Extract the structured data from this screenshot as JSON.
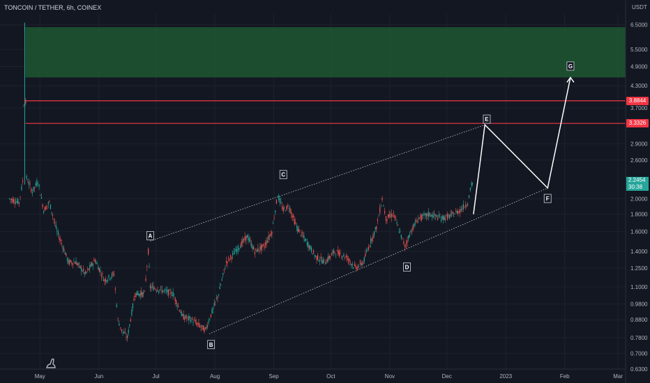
{
  "header": {
    "title": "TONCOIN / TETHER, 6h, COINEX"
  },
  "axis": {
    "currency": "USDT",
    "y_ticks": [
      "6.5000",
      "5.5000",
      "4.9000",
      "4.3000",
      "3.7000",
      "2.9000",
      "2.6000",
      "2.0000",
      "1.8000",
      "1.6000",
      "1.4000",
      "1.2500",
      "1.1000",
      "0.9800",
      "0.8800",
      "0.7800",
      "0.7000",
      "0.6300"
    ],
    "x_ticks": [
      "May",
      "Jun",
      "Jul",
      "Aug",
      "Sep",
      "Oct",
      "Nov",
      "Dec",
      "2023",
      "Feb",
      "Mar"
    ]
  },
  "levels": [
    {
      "price": 3.8844,
      "label": "3.8844",
      "color": "#f23645"
    },
    {
      "price": 3.3326,
      "label": "3.3326",
      "color": "#f23645"
    }
  ],
  "last_price": {
    "value": "2.2454",
    "countdown": "30:38",
    "color": "#26a69a"
  },
  "chart_data": {
    "type": "line",
    "title": "TONCOIN / TETHER, 6h, COINEX",
    "x_range": [
      "2022-04-10",
      "2023-03-05"
    ],
    "ylim": [
      0.63,
      7.0
    ],
    "y_scale": "log",
    "zone": {
      "from": 4.55,
      "to": 6.4,
      "color": "#1e5b32"
    },
    "price_path": {
      "x": [
        "2022-04-15",
        "2022-04-20",
        "2022-04-22",
        "2022-04-23",
        "2022-04-24",
        "2022-04-27",
        "2022-04-30",
        "2022-05-03",
        "2022-05-06",
        "2022-05-10",
        "2022-05-13",
        "2022-05-16",
        "2022-05-20",
        "2022-05-25",
        "2022-05-30",
        "2022-06-04",
        "2022-06-09",
        "2022-06-11",
        "2022-06-13",
        "2022-06-16",
        "2022-06-20",
        "2022-06-25",
        "2022-06-27",
        "2022-06-28",
        "2022-07-03",
        "2022-07-10",
        "2022-07-15",
        "2022-07-20",
        "2022-07-27",
        "2022-08-03",
        "2022-08-07",
        "2022-08-12",
        "2022-08-18",
        "2022-08-22",
        "2022-08-27",
        "2022-08-31",
        "2022-09-03",
        "2022-09-06",
        "2022-09-09",
        "2022-09-13",
        "2022-09-18",
        "2022-09-23",
        "2022-09-28",
        "2022-10-03",
        "2022-10-09",
        "2022-10-14",
        "2022-10-18",
        "2022-10-22",
        "2022-10-25",
        "2022-10-28",
        "2022-10-30",
        "2022-11-03",
        "2022-11-07",
        "2022-11-09",
        "2022-11-12",
        "2022-11-16",
        "2022-11-22",
        "2022-11-28",
        "2022-12-03",
        "2022-12-08",
        "2022-12-12",
        "2022-12-14",
        "2022-12-15"
      ],
      "y": [
        2.0,
        1.95,
        2.25,
        6.4,
        2.3,
        2.1,
        2.25,
        1.85,
        1.95,
        1.6,
        1.45,
        1.3,
        1.3,
        1.2,
        1.32,
        1.15,
        1.2,
        0.88,
        0.82,
        0.78,
        1.05,
        1.05,
        1.4,
        1.1,
        1.08,
        1.05,
        0.9,
        0.88,
        0.82,
        1.05,
        1.3,
        1.4,
        1.55,
        1.4,
        1.45,
        1.6,
        2.05,
        1.85,
        1.9,
        1.65,
        1.5,
        1.35,
        1.3,
        1.4,
        1.35,
        1.25,
        1.3,
        1.5,
        1.65,
        2.0,
        1.75,
        1.8,
        1.55,
        1.45,
        1.6,
        1.75,
        1.8,
        1.75,
        1.78,
        1.85,
        1.95,
        2.2,
        2.2454
      ]
    },
    "projection": {
      "x": [
        "2022-12-15",
        "2022-12-21",
        "2023-01-23",
        "2023-02-04"
      ],
      "y": [
        1.8,
        3.3,
        2.15,
        4.55
      ]
    },
    "channel": {
      "upper": {
        "x": [
          "2022-06-28",
          "2022-12-21"
        ],
        "y": [
          1.5,
          3.3
        ]
      },
      "lower": {
        "x": [
          "2022-07-29",
          "2023-01-23"
        ],
        "y": [
          0.8,
          2.15
        ]
      }
    },
    "wave_labels": [
      {
        "label": "A",
        "x": "2022-06-28",
        "y": 1.52,
        "pos": "above"
      },
      {
        "label": "B",
        "x": "2022-07-30",
        "y": 0.78,
        "pos": "below"
      },
      {
        "label": "C",
        "x": "2022-09-06",
        "y": 2.3,
        "pos": "above"
      },
      {
        "label": "D",
        "x": "2022-11-10",
        "y": 1.32,
        "pos": "below"
      },
      {
        "label": "E",
        "x": "2022-12-22",
        "y": 3.35,
        "pos": "above"
      },
      {
        "label": "F",
        "x": "2023-01-23",
        "y": 2.1,
        "pos": "below"
      },
      {
        "label": "G",
        "x": "2023-02-04",
        "y": 4.8,
        "pos": "above"
      }
    ],
    "xlabel": "",
    "ylabel": "",
    "grid": true
  }
}
